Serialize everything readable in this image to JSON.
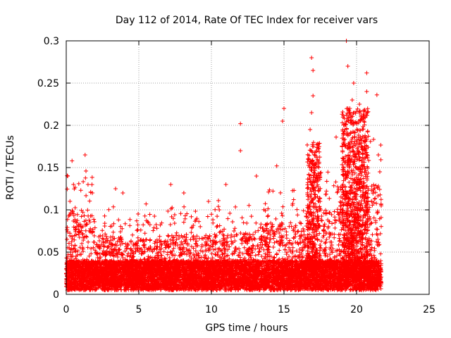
{
  "chart_data": {
    "type": "scatter",
    "title": "Day 112 of 2014, Rate Of TEC Index for receiver vars",
    "xlabel": "GPS time / hours",
    "ylabel": "ROTI / TECUs",
    "xlim": [
      0,
      25
    ],
    "ylim": [
      0,
      0.3
    ],
    "xticks": [
      0,
      5,
      10,
      15,
      20,
      25
    ],
    "yticks": [
      0,
      0.05,
      0.1,
      0.15,
      0.2,
      0.25,
      0.3
    ],
    "xtick_labels": [
      "0",
      "5",
      "10",
      "15",
      "20",
      "25"
    ],
    "ytick_labels": [
      "0",
      "0.05",
      "0.1",
      "0.15",
      "0.2",
      "0.25",
      "0.3"
    ],
    "grid": true,
    "marker": "+",
    "color": "#ff0000",
    "data_range_x": [
      0,
      21.7
    ],
    "series": [
      {
        "name": "ROTI",
        "peaks": [
          {
            "x": 0.1,
            "y": 0.14
          },
          {
            "x": 0.4,
            "y": 0.158
          },
          {
            "x": 0.5,
            "y": 0.13
          },
          {
            "x": 1.3,
            "y": 0.165
          },
          {
            "x": 1.5,
            "y": 0.13
          },
          {
            "x": 1.8,
            "y": 0.12
          },
          {
            "x": 3.4,
            "y": 0.125
          },
          {
            "x": 3.9,
            "y": 0.12
          },
          {
            "x": 5.5,
            "y": 0.107
          },
          {
            "x": 7.2,
            "y": 0.13
          },
          {
            "x": 8.1,
            "y": 0.12
          },
          {
            "x": 9.8,
            "y": 0.11
          },
          {
            "x": 11.0,
            "y": 0.13
          },
          {
            "x": 12.0,
            "y": 0.202
          },
          {
            "x": 12.0,
            "y": 0.17
          },
          {
            "x": 13.1,
            "y": 0.14
          },
          {
            "x": 14.5,
            "y": 0.152
          },
          {
            "x": 14.9,
            "y": 0.205
          },
          {
            "x": 15.0,
            "y": 0.22
          },
          {
            "x": 16.9,
            "y": 0.28
          },
          {
            "x": 17.0,
            "y": 0.265
          },
          {
            "x": 17.0,
            "y": 0.235
          },
          {
            "x": 16.9,
            "y": 0.215
          },
          {
            "x": 16.8,
            "y": 0.195
          },
          {
            "x": 19.3,
            "y": 0.3
          },
          {
            "x": 19.4,
            "y": 0.27
          },
          {
            "x": 19.4,
            "y": 0.22
          },
          {
            "x": 19.8,
            "y": 0.25
          },
          {
            "x": 19.7,
            "y": 0.23
          },
          {
            "x": 20.2,
            "y": 0.225
          },
          {
            "x": 20.7,
            "y": 0.262
          },
          {
            "x": 20.7,
            "y": 0.24
          },
          {
            "x": 21.4,
            "y": 0.236
          },
          {
            "x": 21.5,
            "y": 0.165
          },
          {
            "x": 21.6,
            "y": 0.145
          }
        ]
      }
    ]
  }
}
